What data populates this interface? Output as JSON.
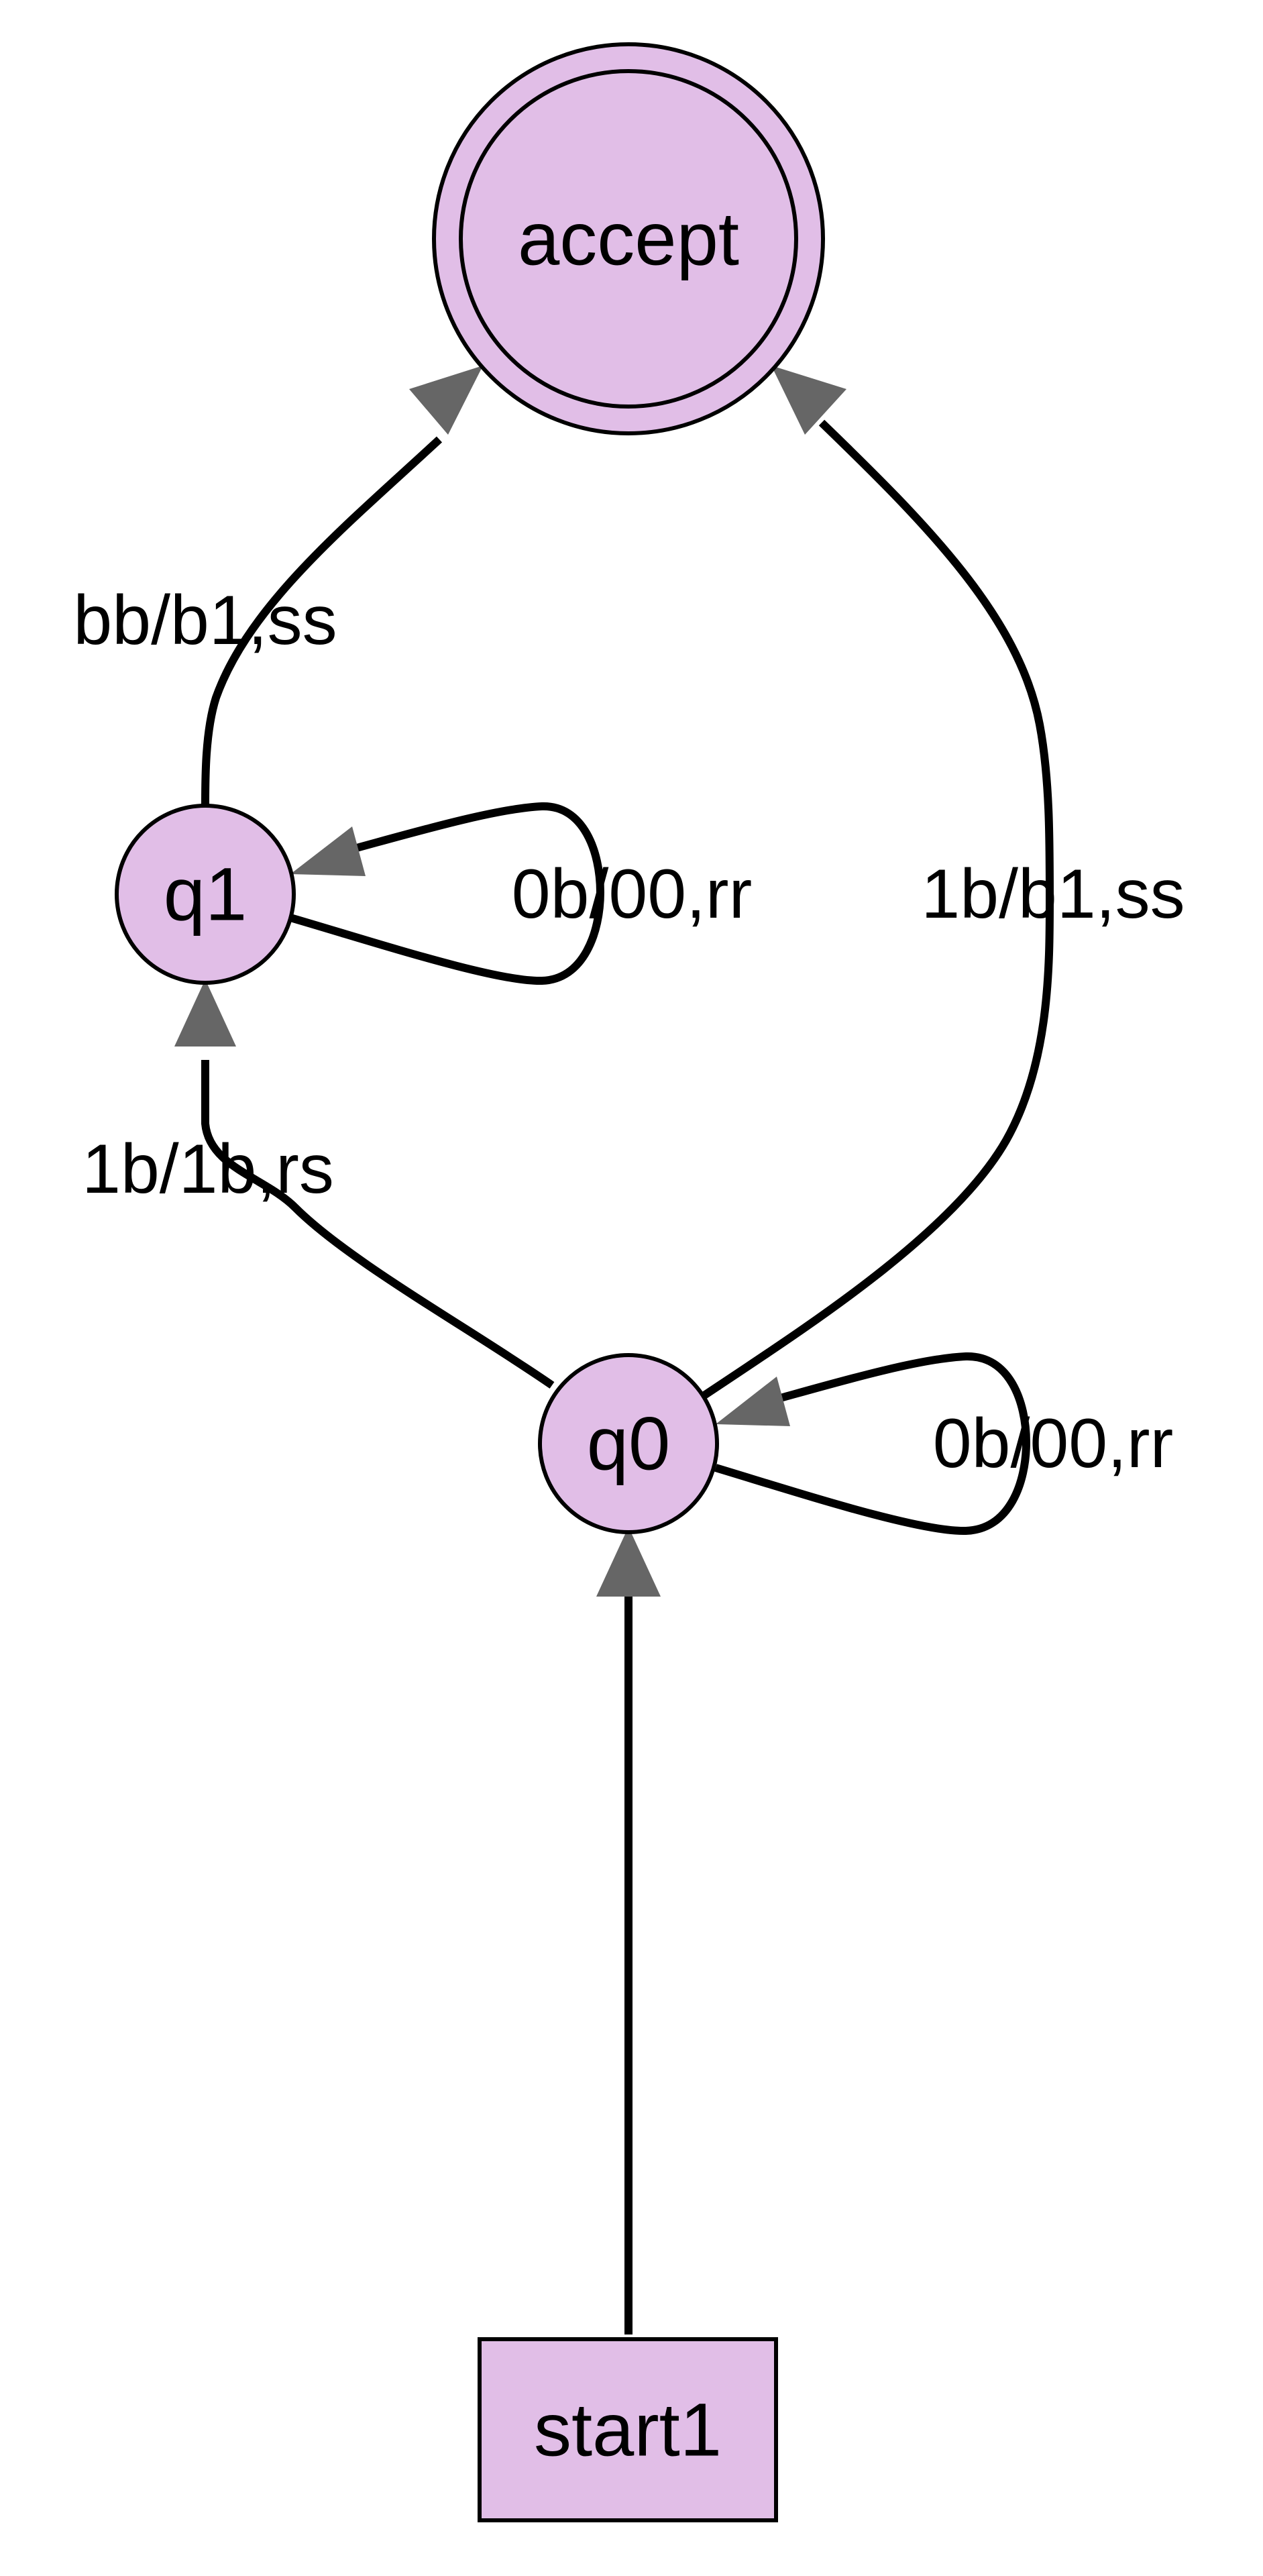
{
  "colors": {
    "node_fill": "#e1bee7",
    "node_stroke": "#000000",
    "edge": "#000000",
    "arrowhead": "#666666",
    "background": "#ffffff"
  },
  "nodes": {
    "accept": {
      "label": "accept",
      "shape": "double-circle"
    },
    "q1": {
      "label": "q1",
      "shape": "circle"
    },
    "q0": {
      "label": "q0",
      "shape": "circle"
    },
    "start1": {
      "label": "start1",
      "shape": "box"
    }
  },
  "edges": {
    "q1_to_accept": {
      "from": "q1",
      "to": "accept",
      "label": "bb/b1,ss"
    },
    "q1_loop": {
      "from": "q1",
      "to": "q1",
      "label": "0b/00,rr"
    },
    "q0_to_accept": {
      "from": "q0",
      "to": "accept",
      "label": "1b/b1,ss"
    },
    "q0_to_q1": {
      "from": "q0",
      "to": "q1",
      "label": "1b/1b,rs"
    },
    "q0_loop": {
      "from": "q0",
      "to": "q0",
      "label": "0b/00,rr"
    },
    "start1_to_q0": {
      "from": "start1",
      "to": "q0",
      "label": ""
    }
  }
}
